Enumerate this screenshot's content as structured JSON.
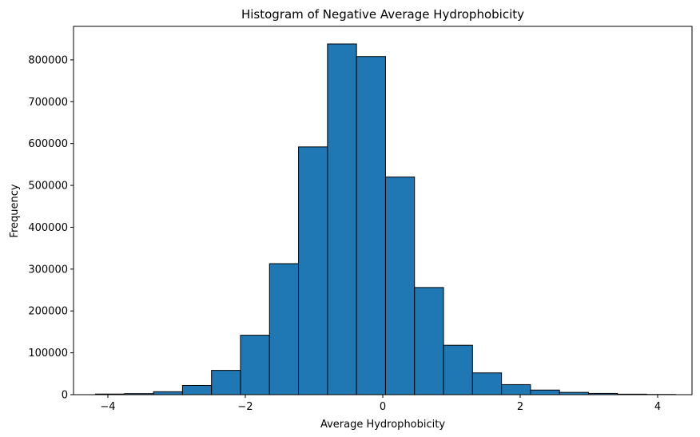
{
  "chart_data": {
    "type": "bar",
    "title": "Histogram of Negative Average Hydrophobicity",
    "xlabel": "Average Hydrophobicity",
    "ylabel": "Frequency",
    "xlim": [
      -4.5,
      4.5
    ],
    "ylim": [
      0,
      880000
    ],
    "xticks": [
      -4,
      -2,
      0,
      2,
      4
    ],
    "xtick_labels": [
      "−4",
      "−2",
      "0",
      "2",
      "4"
    ],
    "yticks": [
      0,
      100000,
      200000,
      300000,
      400000,
      500000,
      600000,
      700000,
      800000
    ],
    "ytick_labels": [
      "0",
      "100000",
      "200000",
      "300000",
      "400000",
      "500000",
      "600000",
      "700000",
      "800000"
    ],
    "bin_edges": [
      -4.18,
      -3.758,
      -3.336,
      -2.914,
      -2.492,
      -2.07,
      -1.648,
      -1.226,
      -0.804,
      -0.382,
      0.04,
      0.462,
      0.884,
      1.306,
      1.728,
      2.15,
      2.572,
      2.994,
      3.416,
      3.838,
      4.26
    ],
    "values": [
      1500,
      2500,
      7000,
      22000,
      58000,
      142000,
      313000,
      592000,
      838000,
      808000,
      520000,
      256000,
      118000,
      52000,
      24000,
      11000,
      5500,
      3000,
      1200,
      500
    ],
    "bar_color": "#1f77b4",
    "edge_color": "#000000",
    "grid": false,
    "legend": "none"
  }
}
